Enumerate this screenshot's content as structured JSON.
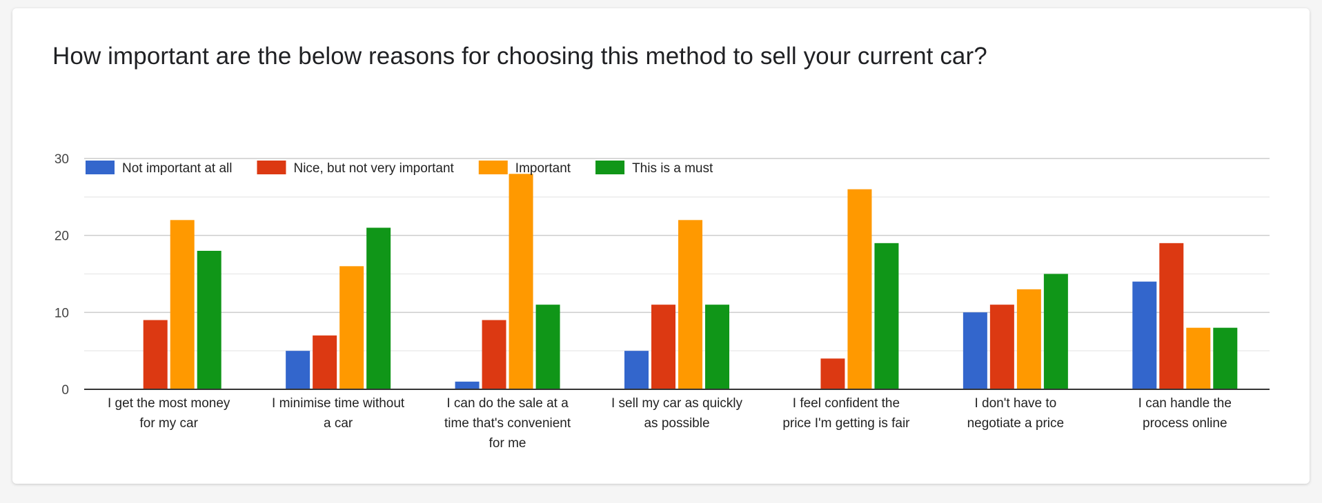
{
  "card": {
    "title": "How important are the below reasons for choosing this method to sell your current car?"
  },
  "colors": {
    "not_important": "#3366cc",
    "nice": "#dc3912",
    "important": "#ff9900",
    "must": "#109618"
  },
  "chart_data": {
    "type": "bar",
    "title": "How important are the below reasons for choosing this method to sell your current car?",
    "xlabel": "",
    "ylabel": "",
    "ylim": [
      0,
      30
    ],
    "yticks": [
      "0",
      "10",
      "20",
      "30"
    ],
    "grid": true,
    "legend_position": "top-left",
    "categories": [
      [
        "I get the most money",
        "for my car"
      ],
      [
        "I minimise time without",
        "a car"
      ],
      [
        "I can do the sale at a",
        "time that's convenient",
        "for me"
      ],
      [
        "I sell my car as quickly",
        "as possible"
      ],
      [
        "I feel confident the",
        "price I'm getting is fair"
      ],
      [
        "I don't have to",
        "negotiate a price"
      ],
      [
        "I can handle the",
        "process online"
      ]
    ],
    "series": [
      {
        "name": "Not important at all",
        "color": "#3366cc",
        "values": [
          0,
          5,
          1,
          5,
          0,
          10,
          14
        ]
      },
      {
        "name": "Nice, but not very important",
        "color": "#dc3912",
        "values": [
          9,
          7,
          9,
          11,
          4,
          11,
          19
        ]
      },
      {
        "name": "Important",
        "color": "#ff9900",
        "values": [
          22,
          16,
          28,
          22,
          26,
          13,
          8
        ]
      },
      {
        "name": "This is a must",
        "color": "#109618",
        "values": [
          18,
          21,
          11,
          11,
          19,
          15,
          8
        ]
      }
    ]
  }
}
